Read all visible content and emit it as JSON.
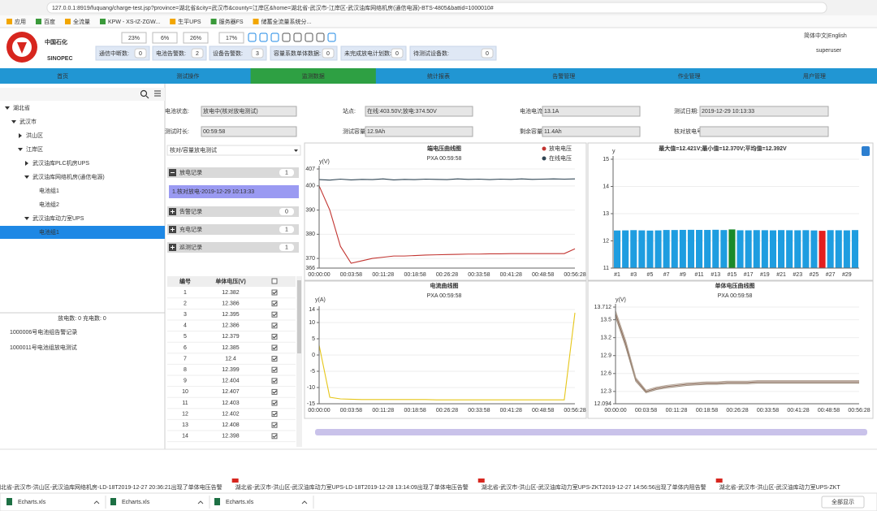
{
  "browser": {
    "url": "127.0.0.1:8919/fuquang/charge-test.jsp?province=湖北省&city=武汉市&county=江岸区&home=湖北省-武汉市-江岸区-武汉油库网络机房(通信电源)-BTS-4805&battid=1000010#",
    "bookmarks": [
      "应用",
      "百度",
      "全流量",
      "KPW - XS-IZ-ZGW...",
      "生平UPS",
      "服务器FS",
      "储蓄全流量系统分..."
    ]
  },
  "header": {
    "logo_cn": "中国石化",
    "logo_en": "SINOPEC",
    "percents": [
      "23%",
      "6%",
      "26%",
      "17%"
    ],
    "counters": [
      {
        "label": "通信中断数:",
        "value": 0
      },
      {
        "label": "电池告警数:",
        "value": 2
      },
      {
        "label": "设备告警数:",
        "value": 3
      },
      {
        "label": "容量系数单体数据:",
        "value": 0
      },
      {
        "label": "未完成放电计划数:",
        "value": 0
      },
      {
        "label": "待测试设备数:",
        "value": 0
      }
    ],
    "language": "简体中文|English",
    "user": "superuser"
  },
  "nav": {
    "tabs": [
      "首页",
      "测试操作",
      "监测数据",
      "统计报表",
      "告警管理",
      "作业管理",
      "用户管理"
    ],
    "active": 2
  },
  "tree": [
    {
      "label": "湖北省",
      "children": [
        {
          "label": "武汉市",
          "children": [
            {
              "label": "洪山区",
              "collapsed": true
            },
            {
              "label": "江岸区",
              "children": [
                {
                  "label": "武汉油库PLC机房UPS",
                  "collapsed": true
                },
                {
                  "label": "武汉油库网络机房(通信电源)",
                  "children": [
                    {
                      "label": "电池组1"
                    },
                    {
                      "label": "电池组2"
                    }
                  ]
                },
                {
                  "label": "武汉油库动力室UPS",
                  "children": [
                    {
                      "label": "电池组1",
                      "selected": true
                    }
                  ]
                }
              ]
            }
          ]
        }
      ]
    }
  ],
  "summary": "放电数: 0  充电数: 0",
  "alerts": [
    "1000006号电池组告警记录",
    "1000011号电池组放电测试"
  ],
  "info": {
    "fields": [
      {
        "label": "电池状态:",
        "value": "放电中(核对放电测试)"
      },
      {
        "label": "站点:",
        "value": "在线:403.50V;放电:374.50V"
      },
      {
        "label": "电池电流:",
        "value": "13.1A"
      },
      {
        "label": "测试日期:",
        "value": "2019-12-29 10:13:33"
      },
      {
        "label": "测试时长:",
        "value": "00:59:58"
      },
      {
        "label": "测试容量:",
        "value": "12.9Ah"
      },
      {
        "label": "剩余容量:",
        "value": "11.4Ah"
      },
      {
        "label": "核对放电号:"
      }
    ]
  },
  "panel": {
    "mode": "核对/容量放电测试",
    "sections": [
      {
        "title": "放电记录",
        "count": 1,
        "expanded": true,
        "items": [
          "1.核对放电-2019-12-29 10:13:33"
        ]
      },
      {
        "title": "告警记录",
        "count": 0
      },
      {
        "title": "充电记录",
        "count": 1
      },
      {
        "title": "巡测记录",
        "count": 1
      }
    ]
  },
  "table": {
    "header": [
      "编号",
      "单体电压(V)"
    ],
    "rows": [
      [
        1,
        12.382
      ],
      [
        2,
        12.386
      ],
      [
        3,
        12.395
      ],
      [
        4,
        12.386
      ],
      [
        5,
        12.379
      ],
      [
        6,
        12.385
      ],
      [
        7,
        12.4
      ],
      [
        8,
        12.399
      ],
      [
        9,
        12.404
      ],
      [
        10,
        12.407
      ],
      [
        11,
        12.403
      ],
      [
        12,
        12.402
      ],
      [
        13,
        12.408
      ],
      [
        14,
        12.398
      ]
    ]
  },
  "charts": [
    {
      "type": "line",
      "title": "端电压曲线图",
      "subtitle": "PXA 00:59:58",
      "y_label": "y(V)",
      "grid": true,
      "categories": [
        "00:00:00",
        null,
        null,
        "00:03:58",
        null,
        null,
        "00:11:28",
        null,
        null,
        "00:18:58",
        null,
        null,
        "00:26:28",
        null,
        null,
        "00:33:58",
        null,
        null,
        "00:41:28",
        null,
        null,
        "00:48:58",
        null,
        null,
        "00:56:28"
      ],
      "ylim": [
        366,
        407
      ],
      "yticks": [
        366,
        370,
        380,
        390,
        400,
        407
      ],
      "series": [
        {
          "name": "放电电压",
          "color": "#c23531",
          "values": [
            400,
            390,
            375,
            368,
            369,
            370,
            370.5,
            371,
            371,
            371.2,
            371.4,
            371.5,
            371.6,
            371.7,
            371.8,
            371.8,
            371.9,
            371.9,
            372,
            372,
            372,
            372,
            372,
            372,
            374
          ]
        },
        {
          "name": "在线电压",
          "color": "#2f4554",
          "values": [
            402.6,
            402.4,
            402.8,
            402.5,
            402.7,
            402.6,
            402.9,
            402.5,
            402.7,
            402.6,
            402.8,
            402.7,
            402.6,
            402.9,
            402.7,
            402.8,
            402.6,
            402.8,
            402.7,
            402.9,
            402.7,
            402.8,
            402.9,
            402.8,
            402.9
          ]
        }
      ]
    },
    {
      "type": "bar",
      "title": "最大值=12.421V;最小值=12.370V;平均值=12.392V",
      "y_label": "y",
      "grid": true,
      "categories": [
        "#1",
        null,
        "#3",
        null,
        "#5",
        null,
        "#7",
        null,
        "#9",
        null,
        "#11",
        null,
        "#13",
        null,
        "#15",
        null,
        "#17",
        null,
        "#19",
        null,
        "#21",
        null,
        "#23",
        null,
        "#25",
        null,
        "#27",
        null,
        "#29",
        null
      ],
      "values": [
        12.382,
        12.386,
        12.395,
        12.386,
        12.379,
        12.385,
        12.4,
        12.399,
        12.404,
        12.407,
        12.403,
        12.402,
        12.408,
        12.398,
        12.421,
        12.39,
        12.388,
        12.395,
        12.392,
        12.387,
        12.396,
        12.391,
        12.389,
        12.393,
        12.384,
        12.37,
        12.394,
        12.39,
        12.386,
        12.397
      ],
      "colors": [
        "#1e9de0",
        "#1e9de0",
        "#1e9de0",
        "#1e9de0",
        "#1e9de0",
        "#1e9de0",
        "#1e9de0",
        "#1e9de0",
        "#1e9de0",
        "#1e9de0",
        "#1e9de0",
        "#1e9de0",
        "#1e9de0",
        "#1e9de0",
        "#1a8a2a",
        "#1e9de0",
        "#1e9de0",
        "#1e9de0",
        "#1e9de0",
        "#1e9de0",
        "#1e9de0",
        "#1e9de0",
        "#1e9de0",
        "#1e9de0",
        "#1e9de0",
        "#e41e1e",
        "#1e9de0",
        "#1e9de0",
        "#1e9de0",
        "#1e9de0"
      ],
      "ylim": [
        11,
        15
      ],
      "yticks": [
        11,
        12,
        13,
        14,
        15
      ]
    },
    {
      "type": "line",
      "title": "电流曲线图",
      "subtitle": "PXA 00:59:58",
      "y_label": "y(A)",
      "grid": true,
      "categories": [
        "00:00:00",
        null,
        null,
        "00:03:58",
        null,
        null,
        "00:11:28",
        null,
        null,
        "00:18:58",
        null,
        null,
        "00:26:28",
        null,
        null,
        "00:33:58",
        null,
        null,
        "00:41:28",
        null,
        null,
        "00:48:58",
        null,
        null,
        "00:56:28"
      ],
      "ylim": [
        -15,
        14
      ],
      "yticks": [
        -15,
        -10,
        -5,
        0,
        5,
        10,
        14
      ],
      "series": [
        {
          "color": "#e6c619",
          "values": [
            3,
            -13,
            -13.5,
            -13.6,
            -13.7,
            -13.7,
            -13.7,
            -13.7,
            -13.7,
            -13.7,
            -13.7,
            -13.8,
            -13.8,
            -13.8,
            -13.8,
            -13.8,
            -13.8,
            -13.8,
            -13.8,
            -13.8,
            -13.8,
            -13.8,
            -13.8,
            -13.8,
            13
          ]
        }
      ]
    },
    {
      "type": "line",
      "title": "单体电压曲线图",
      "subtitle": "PXA 00:59:58",
      "y_label": "y(V)",
      "grid": true,
      "categories": [
        "00:00:00",
        null,
        null,
        "00:03:58",
        null,
        null,
        "00:11:28",
        null,
        null,
        "00:18:58",
        null,
        null,
        "00:26:28",
        null,
        null,
        "00:33:58",
        null,
        null,
        "00:41:28",
        null,
        null,
        "00:48:58",
        null,
        null,
        "00:56:28"
      ],
      "ylim": [
        12.094,
        13.712
      ],
      "yticks": [
        12.094,
        12.3,
        12.6,
        12.9,
        13.2,
        13.5,
        13.712
      ],
      "series": [
        {
          "color": "#8b6b5a",
          "values": [
            13.6,
            13.1,
            12.5,
            12.3,
            12.35,
            12.38,
            12.4,
            12.42,
            12.43,
            12.44,
            12.44,
            12.45,
            12.45,
            12.45,
            12.46,
            12.46,
            12.46,
            12.46,
            12.46,
            12.46,
            12.46,
            12.46,
            12.46,
            12.46,
            12.46
          ]
        },
        {
          "color": "#a09080",
          "values": [
            13.55,
            13.05,
            12.47,
            12.28,
            12.33,
            12.36,
            12.38,
            12.4,
            12.41,
            12.42,
            12.42,
            12.43,
            12.43,
            12.43,
            12.44,
            12.44,
            12.44,
            12.44,
            12.44,
            12.44,
            12.44,
            12.44,
            12.44,
            12.44,
            12.44
          ]
        },
        {
          "color": "#b7a89a",
          "values": [
            13.65,
            13.15,
            12.53,
            12.32,
            12.37,
            12.4,
            12.42,
            12.44,
            12.45,
            12.46,
            12.46,
            12.47,
            12.47,
            12.47,
            12.48,
            12.48,
            12.48,
            12.48,
            12.48,
            12.48,
            12.48,
            12.48,
            12.48,
            12.48,
            12.48
          ]
        }
      ]
    }
  ],
  "ticker": [
    "湖北省-武汉市-洪山区-武汉油库网络机房-LD-18T2019-12-27 20:36:21出现了单体电压告警",
    "湖北省-武汉市-洪山区-武汉油库动力室UPS-LD-18T2019-12-28 13:14:09出现了单体电压告警",
    "湖北省-武汉市-洪山区-武汉油库动力室UPS-ZKT2019-12-27 14:56:56出现了单体内阻告警",
    "湖北省-武汉市-洪山区-武汉油库动力室UPS-ZKT"
  ],
  "downloads": [
    "Echarts.xls",
    "Echarts.xls",
    "Echarts.xls"
  ],
  "show_all": "全部显示"
}
